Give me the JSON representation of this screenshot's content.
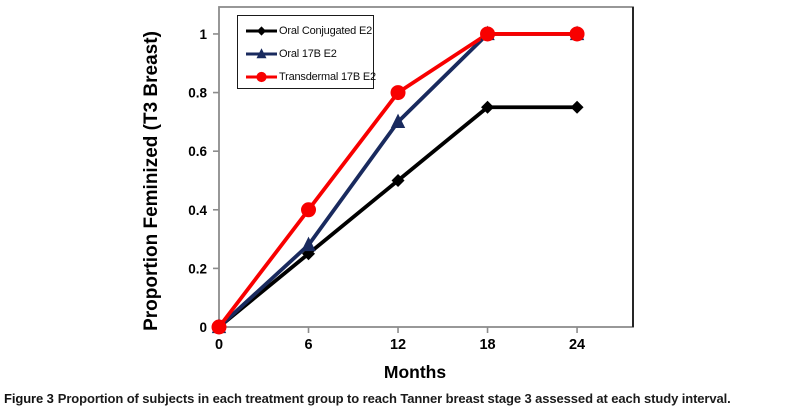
{
  "figure": {
    "caption_label": "Figure 3",
    "caption_text": "Proportion of subjects in each treatment group to reach Tanner breast stage 3 assessed at each study interval."
  },
  "chart_data": {
    "type": "line",
    "title": "",
    "xlabel": "Months",
    "ylabel": "Proportion Feminized (T3 Breast)",
    "x": [
      0,
      6,
      12,
      18,
      24
    ],
    "x_tick_labels": [
      "0",
      "6",
      "12",
      "18",
      "24"
    ],
    "y_ticks": [
      0,
      0.2,
      0.4,
      0.6,
      0.8,
      1
    ],
    "y_tick_labels": [
      "0",
      "0.2",
      "0.4",
      "0.6",
      "0.8",
      "1"
    ],
    "xlim": [
      0,
      27.75
    ],
    "ylim": [
      0,
      1.092
    ],
    "grid": false,
    "legend_position": "upper-left-inside",
    "frame_color": "#8c8c8c",
    "right_edge_color": "#262626",
    "tick_color": "#8c8c8c",
    "series": [
      {
        "name": "Oral Conjugated E2",
        "color": "#000000",
        "marker": "diamond",
        "values": [
          0,
          0.25,
          0.5,
          0.75,
          0.75
        ]
      },
      {
        "name": "Oral 17B E2",
        "color": "#192A5E",
        "marker": "triangle",
        "values": [
          0,
          0.28,
          0.7,
          1,
          1
        ]
      },
      {
        "name": "Transdermal 17B E2",
        "color": "#F80000",
        "marker": "circle",
        "values": [
          0,
          0.4,
          0.8,
          1,
          1
        ]
      }
    ]
  }
}
